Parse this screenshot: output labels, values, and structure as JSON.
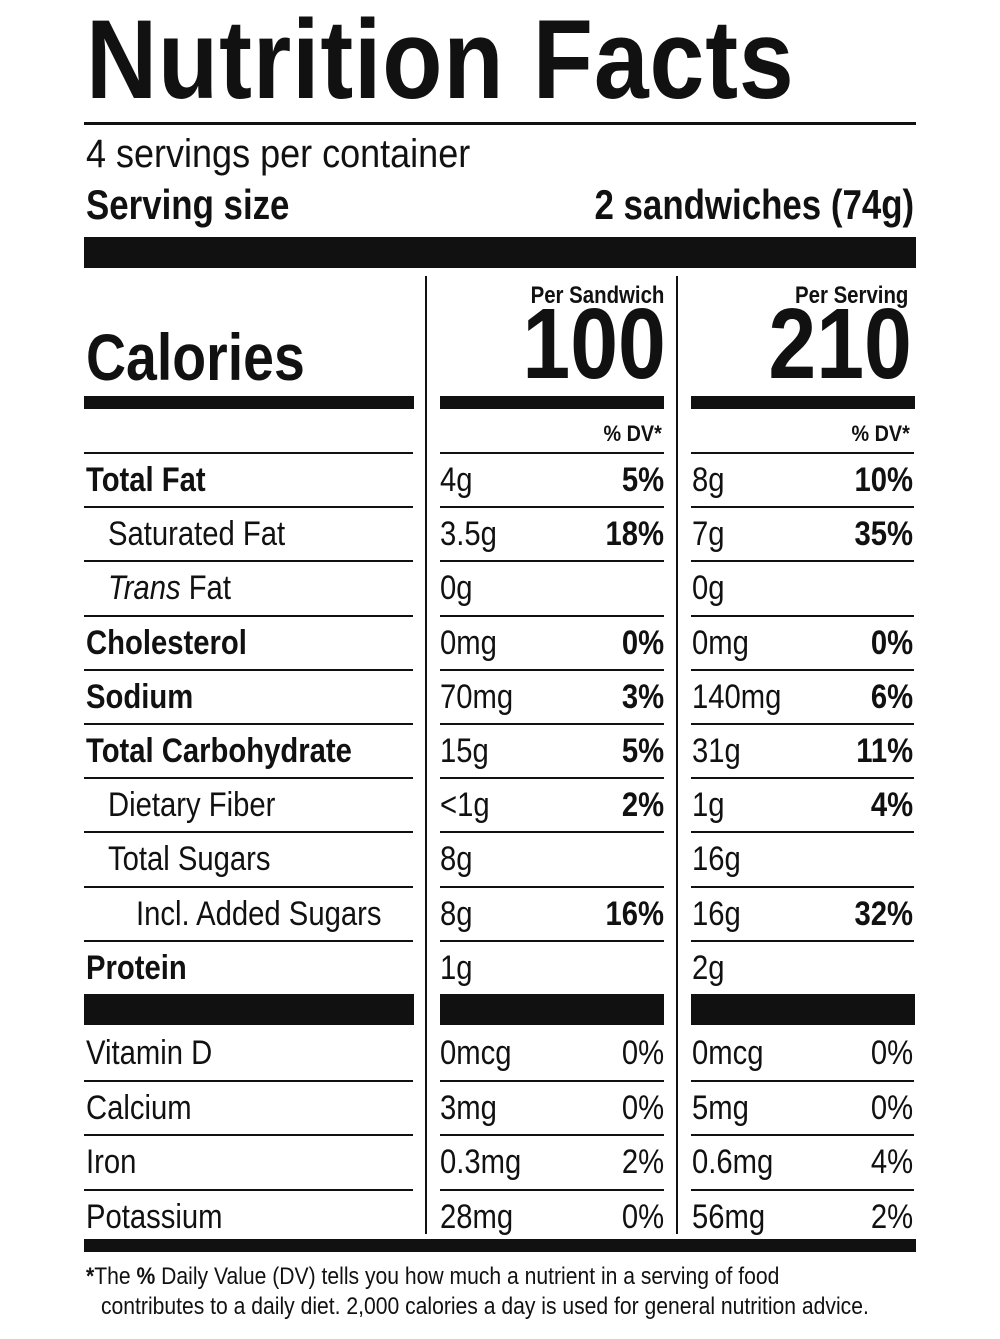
{
  "title": "Nutrition Facts",
  "servings_per_container": "4 servings per container",
  "serving_size": {
    "label": "Serving size",
    "value": "2 sandwiches (74g)"
  },
  "columns": [
    {
      "heading": "Per Sandwich",
      "calories": "100",
      "dv_heading": "% DV*"
    },
    {
      "heading": "Per Serving",
      "calories": "210",
      "dv_heading": "% DV*"
    }
  ],
  "calories_label": "Calories",
  "nutrients": [
    {
      "name": "Total Fat",
      "style": "bold",
      "values": [
        {
          "amount": "4g",
          "dv": "5%"
        },
        {
          "amount": "8g",
          "dv": "10%"
        }
      ]
    },
    {
      "name": "Saturated Fat",
      "style": "indent",
      "values": [
        {
          "amount": "3.5g",
          "dv": "18%"
        },
        {
          "amount": "7g",
          "dv": "35%"
        }
      ]
    },
    {
      "name_italic": "Trans",
      "name_rest": " Fat",
      "style": "indent-italic",
      "values": [
        {
          "amount": "0g",
          "dv": ""
        },
        {
          "amount": "0g",
          "dv": ""
        }
      ]
    },
    {
      "name": "Cholesterol",
      "style": "bold",
      "values": [
        {
          "amount": "0mg",
          "dv": "0%"
        },
        {
          "amount": "0mg",
          "dv": "0%"
        }
      ]
    },
    {
      "name": "Sodium",
      "style": "bold",
      "values": [
        {
          "amount": "70mg",
          "dv": "3%"
        },
        {
          "amount": "140mg",
          "dv": "6%"
        }
      ]
    },
    {
      "name": "Total Carbohydrate",
      "style": "bold",
      "values": [
        {
          "amount": "15g",
          "dv": "5%"
        },
        {
          "amount": "31g",
          "dv": "11%"
        }
      ]
    },
    {
      "name": "Dietary Fiber",
      "style": "indent",
      "values": [
        {
          "amount": "<1g",
          "dv": "2%"
        },
        {
          "amount": "1g",
          "dv": "4%"
        }
      ]
    },
    {
      "name": "Total Sugars",
      "style": "indent",
      "values": [
        {
          "amount": "8g",
          "dv": ""
        },
        {
          "amount": "16g",
          "dv": ""
        }
      ]
    },
    {
      "name": "Incl. Added Sugars",
      "style": "indent2",
      "values": [
        {
          "amount": "8g",
          "dv": "16%"
        },
        {
          "amount": "16g",
          "dv": "32%"
        }
      ]
    },
    {
      "name": "Protein",
      "style": "bold",
      "values": [
        {
          "amount": "1g",
          "dv": ""
        },
        {
          "amount": "2g",
          "dv": ""
        }
      ]
    }
  ],
  "vitamins": [
    {
      "name": "Vitamin D",
      "values": [
        {
          "amount": "0mcg",
          "dv": "0%"
        },
        {
          "amount": "0mcg",
          "dv": "0%"
        }
      ]
    },
    {
      "name": "Calcium",
      "values": [
        {
          "amount": "3mg",
          "dv": "0%"
        },
        {
          "amount": "5mg",
          "dv": "0%"
        }
      ]
    },
    {
      "name": "Iron",
      "values": [
        {
          "amount": "0.3mg",
          "dv": "2%"
        },
        {
          "amount": "0.6mg",
          "dv": "4%"
        }
      ]
    },
    {
      "name": "Potassium",
      "values": [
        {
          "amount": "28mg",
          "dv": "0%"
        },
        {
          "amount": "56mg",
          "dv": "2%"
        }
      ]
    }
  ],
  "footnote": {
    "asterisk": "*",
    "line1_pre": "The ",
    "line1_bold": "%",
    "line1_post": " Daily Value (DV) tells you how much a nutrient in a serving of food",
    "line2": "contributes to a daily diet. 2,000 calories a day is used for general nutrition advice."
  }
}
